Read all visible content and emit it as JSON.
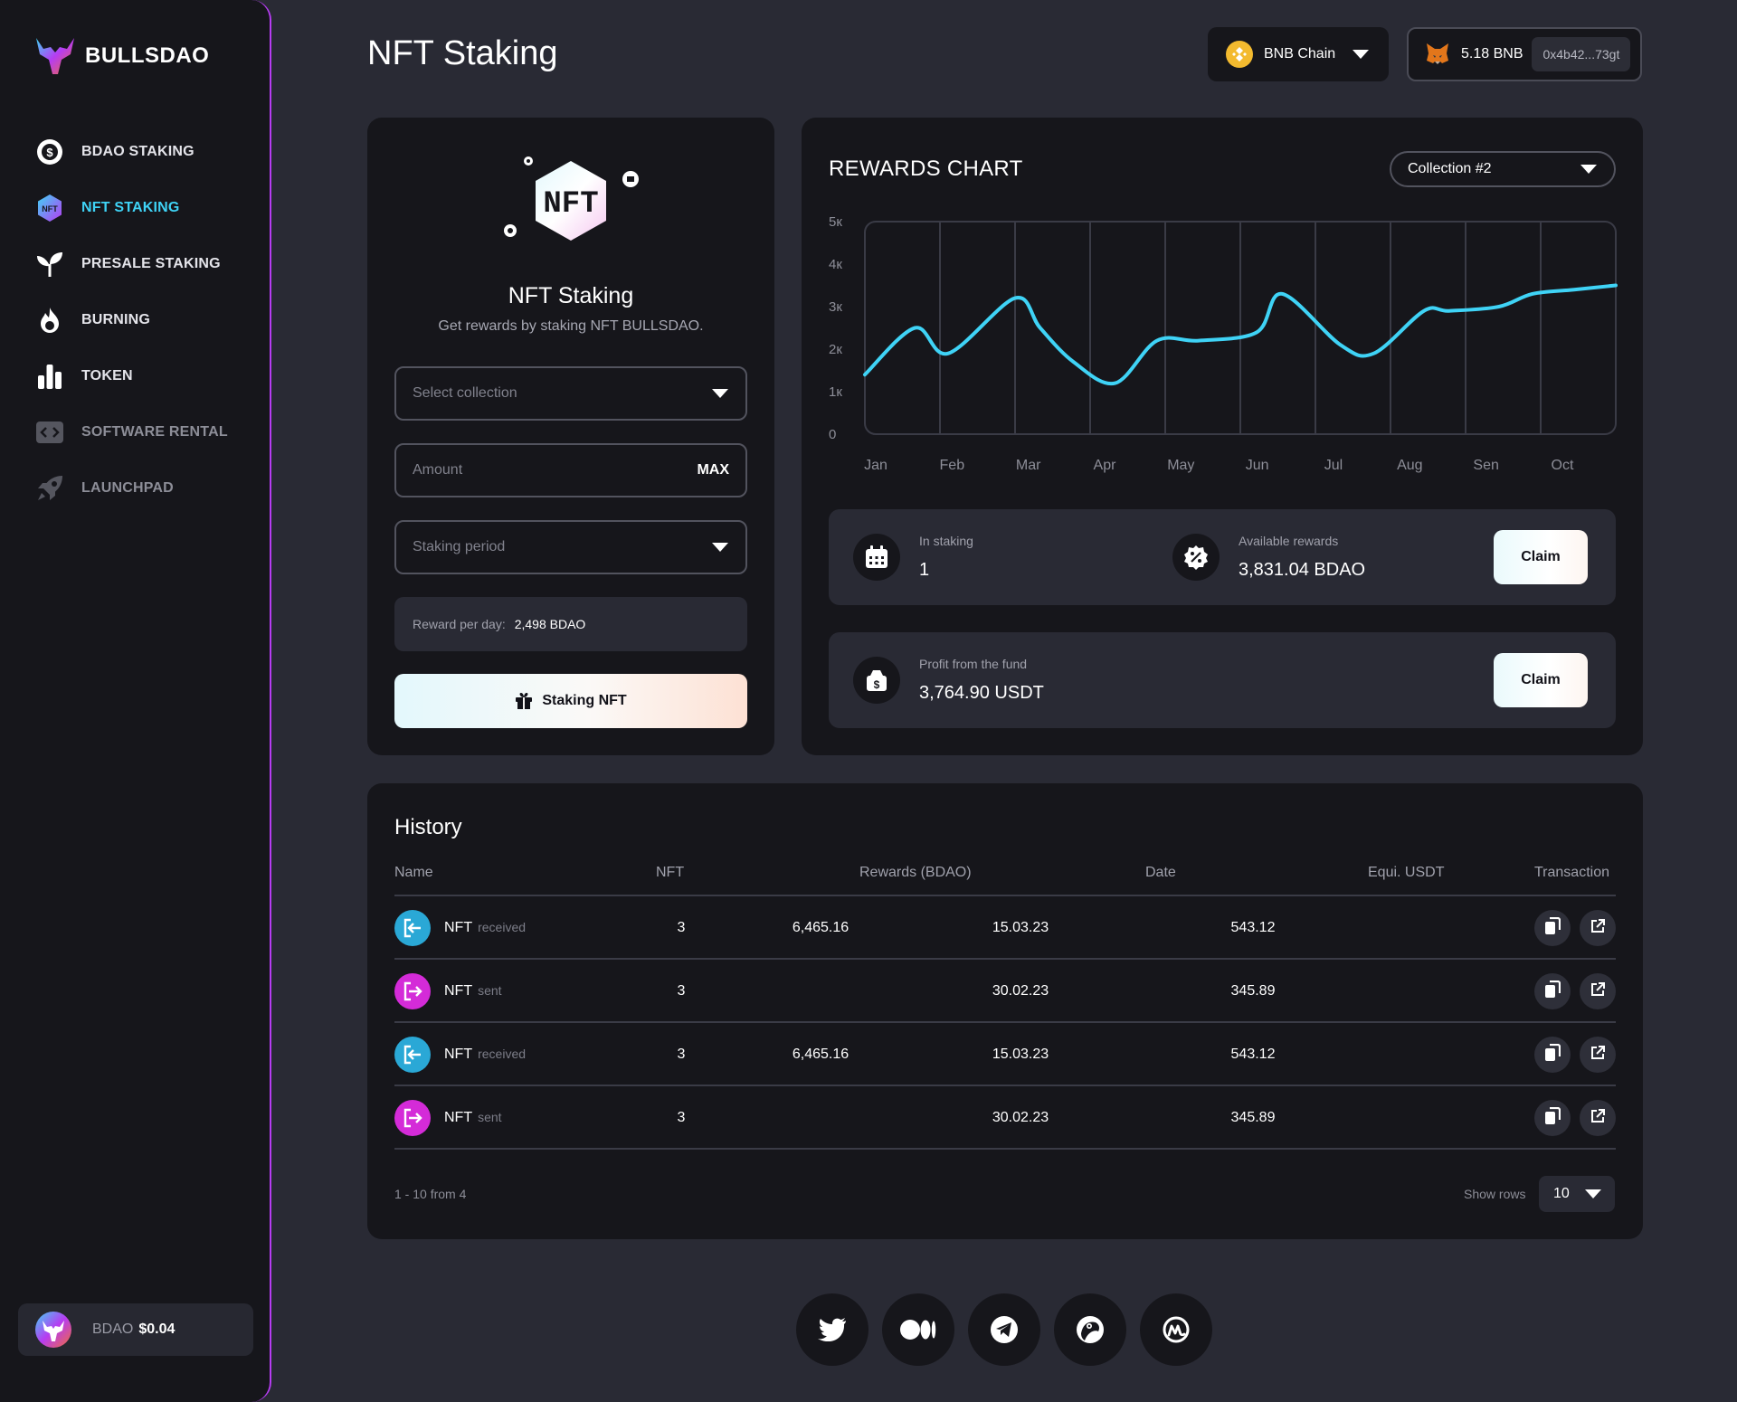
{
  "brand": {
    "name": "BULLSDAO"
  },
  "sidebar": {
    "items": [
      {
        "label": "BDAO STAKING",
        "icon": "dollar-coin-icon"
      },
      {
        "label": "NFT STAKING",
        "icon": "nft-hexagon-icon",
        "active": true
      },
      {
        "label": "PRESALE STAKING",
        "icon": "sprout-icon"
      },
      {
        "label": "BURNING",
        "icon": "flame-icon"
      },
      {
        "label": "TOKEN",
        "icon": "bar-chart-icon"
      },
      {
        "label": "SOFTWARE RENTAL",
        "icon": "code-icon"
      },
      {
        "label": "LAUNCHPAD",
        "icon": "rocket-icon"
      }
    ],
    "price": {
      "label": "BDAO",
      "value": "$0.04"
    }
  },
  "header": {
    "title": "NFT Staking",
    "chain": "BNB Chain",
    "balance": "5.18 BNB",
    "address": "0x4b42...73gt"
  },
  "stake": {
    "badge": "NFT",
    "title": "NFT Staking",
    "subtitle": "Get rewards by staking NFT BULLSDAO.",
    "collection_placeholder": "Select collection",
    "amount_placeholder": "Amount",
    "max_label": "MAX",
    "period_placeholder": "Staking period",
    "reward_label": "Reward per day:",
    "reward_value": "2,498 BDAO",
    "button": "Staking NFT"
  },
  "rewards": {
    "title": "REWARDS CHART",
    "collection": "Collection #2",
    "in_staking_label": "In staking",
    "in_staking_value": "1",
    "available_label": "Available rewards",
    "available_value": "3,831.04 BDAO",
    "profit_label": "Profit from the fund",
    "profit_value": "3,764.90 USDT",
    "claim_label": "Claim"
  },
  "chart_data": {
    "type": "line",
    "categories": [
      "Jan",
      "Feb",
      "Mar",
      "Apr",
      "May",
      "Jun",
      "Jul",
      "Aug",
      "Sen",
      "Oct"
    ],
    "y_ticks": [
      "0",
      "1к",
      "2к",
      "3к",
      "4к",
      "5к"
    ],
    "ylim": [
      0,
      5000
    ],
    "series": [
      {
        "x": [
          0,
          0.6,
          1.0,
          1.8,
          2.1,
          2.5,
          3.0,
          3.5,
          4.0,
          4.7,
          5.0,
          5.7,
          6.1,
          6.7,
          7.0,
          7.6,
          8.0,
          8.5,
          9.0
        ],
        "values": [
          1400,
          2500,
          1900,
          3200,
          2500,
          1700,
          1200,
          2200,
          2200,
          2400,
          3300,
          2100,
          1900,
          2900,
          2900,
          3000,
          3300,
          3400,
          3500
        ]
      }
    ],
    "grid": true,
    "line_color": "#3fd3f6"
  },
  "history": {
    "title": "History",
    "columns": [
      "Name",
      "NFT",
      "Rewards (BDAO)",
      "Date",
      "Equi. USDT",
      "Transaction"
    ],
    "rows": [
      {
        "name": "NFT",
        "status": "received",
        "nft": "3",
        "rewards": "6,465.16",
        "date": "15.03.23",
        "usdt": "543.12"
      },
      {
        "name": "NFT",
        "status": "sent",
        "nft": "3",
        "rewards": "",
        "date": "30.02.23",
        "usdt": "345.89"
      },
      {
        "name": "NFT",
        "status": "received",
        "nft": "3",
        "rewards": "6,465.16",
        "date": "15.03.23",
        "usdt": "543.12"
      },
      {
        "name": "NFT",
        "status": "sent",
        "nft": "3",
        "rewards": "",
        "date": "30.02.23",
        "usdt": "345.89"
      }
    ],
    "pager": "1 - 10 from 4",
    "rows_label": "Show rows",
    "rows_value": "10"
  },
  "colors": {
    "accent": "#3fd3f6",
    "received": "#2aa8d6",
    "sent": "#d42bd8",
    "sidebar_border": "#b63cf2"
  },
  "socials": [
    "twitter-icon",
    "medium-icon",
    "telegram-icon",
    "coingecko-icon",
    "coinmarketcap-icon"
  ]
}
